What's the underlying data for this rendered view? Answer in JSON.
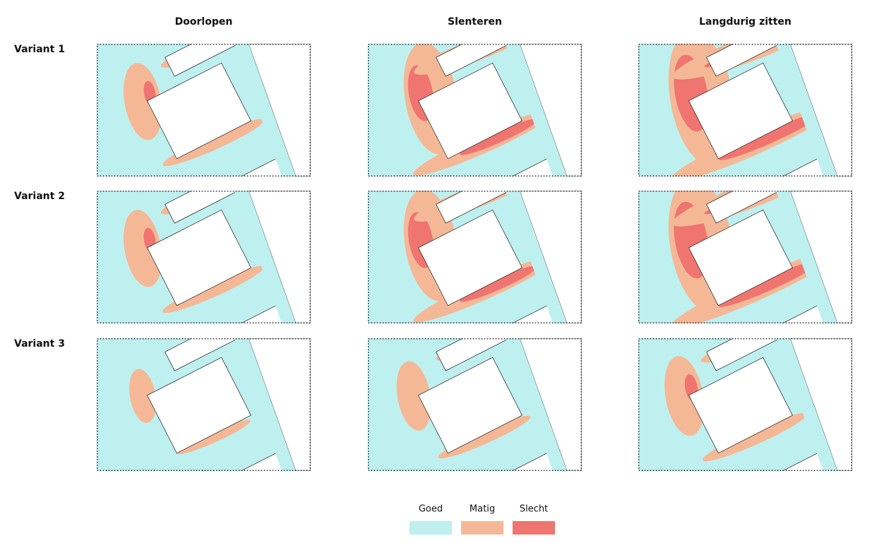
{
  "columns": [
    "Doorlopen",
    "Slenteren",
    "Langdurig zitten"
  ],
  "rows": [
    "Variant 1",
    "Variant 2",
    "Variant 3"
  ],
  "legend": [
    {
      "label": "Goed",
      "color": "#bff0f0"
    },
    {
      "label": "Matig",
      "color": "#f5b896"
    },
    {
      "label": "Slecht",
      "color": "#f07470"
    }
  ]
}
